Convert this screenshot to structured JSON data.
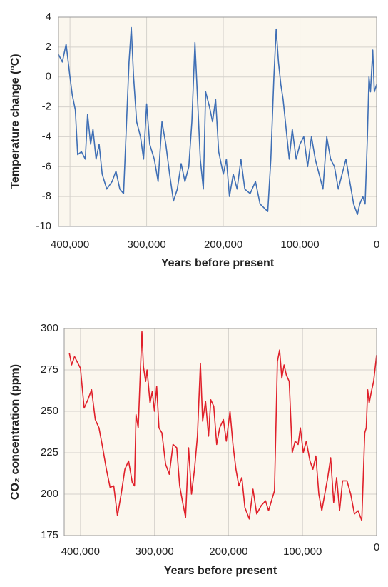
{
  "chart_data": [
    {
      "type": "line",
      "xlabel": "Years before present",
      "ylabel": "Temperature change (°C)",
      "color": "#3f6fb5",
      "grid": true,
      "xlim": [
        415000,
        0
      ],
      "xticks": [
        {
          "value": 400000,
          "label": "400,000"
        },
        {
          "value": 300000,
          "label": "300,000"
        },
        {
          "value": 200000,
          "label": "200,000"
        },
        {
          "value": 100000,
          "label": "100,000"
        },
        0
      ],
      "ylim": [
        -10,
        4
      ],
      "yticks": [
        -10,
        -8,
        -6,
        -4,
        -2,
        0,
        2,
        4
      ],
      "x": [
        415000,
        410000,
        405000,
        400000,
        397000,
        393000,
        390000,
        385000,
        380000,
        377000,
        373000,
        370000,
        366000,
        362000,
        358000,
        352000,
        345000,
        340000,
        335000,
        330000,
        327000,
        323000,
        320000,
        317000,
        313000,
        308000,
        304000,
        300000,
        296000,
        290000,
        285000,
        280000,
        275000,
        270000,
        265000,
        260000,
        255000,
        250000,
        245000,
        241000,
        237000,
        234000,
        230000,
        226000,
        223000,
        218000,
        214000,
        210000,
        206000,
        200000,
        196000,
        192000,
        187000,
        182000,
        177000,
        172000,
        165000,
        158000,
        152000,
        146000,
        142000,
        138000,
        134000,
        131000,
        128000,
        125000,
        122000,
        118000,
        114000,
        110000,
        105000,
        100000,
        95000,
        90000,
        85000,
        80000,
        75000,
        70000,
        65000,
        60000,
        55000,
        50000,
        45000,
        40000,
        35000,
        30000,
        25000,
        22000,
        18000,
        15000,
        12000,
        10000,
        8000,
        5000,
        3000,
        0
      ],
      "values": [
        1.5,
        1.0,
        2.2,
        0,
        -1.2,
        -2.2,
        -5.2,
        -5.0,
        -5.5,
        -2.5,
        -4.5,
        -3.5,
        -5.5,
        -4.5,
        -6.5,
        -7.5,
        -7.0,
        -6.3,
        -7.5,
        -7.8,
        -4.0,
        1.0,
        3.3,
        0,
        -3.0,
        -4.0,
        -5.5,
        -1.8,
        -4.5,
        -5.5,
        -7.0,
        -3.0,
        -4.5,
        -6.5,
        -8.3,
        -7.5,
        -5.8,
        -7.0,
        -6.0,
        -3.0,
        2.3,
        -1.0,
        -5.5,
        -7.5,
        -1.0,
        -2.0,
        -3.0,
        -1.5,
        -5.0,
        -6.5,
        -5.5,
        -8.0,
        -6.5,
        -7.5,
        -5.5,
        -7.5,
        -7.8,
        -7.0,
        -8.5,
        -8.8,
        -9.0,
        -5.5,
        0,
        3.2,
        1.0,
        -0.5,
        -1.5,
        -3.5,
        -5.5,
        -3.5,
        -5.5,
        -4.5,
        -4.0,
        -6.0,
        -4.0,
        -5.5,
        -6.5,
        -7.5,
        -4.0,
        -5.5,
        -6.0,
        -7.5,
        -6.5,
        -5.5,
        -7.0,
        -8.5,
        -9.2,
        -8.5,
        -8.0,
        -8.5,
        -4.0,
        0,
        -1.0,
        1.8,
        -1.0,
        -0.5
      ]
    },
    {
      "type": "line",
      "xlabel": "Years before present",
      "ylabel": "CO₂ concentration (ppm)",
      "color": "#e0202a",
      "grid": true,
      "xlim": [
        422000,
        0
      ],
      "xticks": [
        {
          "value": 400000,
          "label": "400,000"
        },
        {
          "value": 300000,
          "label": "300,000"
        },
        {
          "value": 200000,
          "label": "200,000"
        },
        {
          "value": 100000,
          "label": "100,000"
        },
        0
      ],
      "ylim": [
        175,
        300
      ],
      "yticks": [
        175,
        200,
        225,
        250,
        275,
        300
      ],
      "x": [
        415000,
        412000,
        408000,
        400000,
        395000,
        390000,
        385000,
        380000,
        375000,
        370000,
        365000,
        360000,
        355000,
        350000,
        345000,
        340000,
        335000,
        330000,
        327000,
        325000,
        322000,
        319000,
        317000,
        315000,
        312000,
        310000,
        306000,
        303000,
        300000,
        297000,
        294000,
        290000,
        285000,
        280000,
        275000,
        270000,
        266000,
        262000,
        258000,
        254000,
        250000,
        246000,
        242000,
        238000,
        235000,
        231000,
        227000,
        224000,
        220000,
        216000,
        212000,
        207000,
        203000,
        198000,
        194000,
        190000,
        186000,
        182000,
        178000,
        172000,
        167000,
        162000,
        156000,
        150000,
        146000,
        142000,
        138000,
        134000,
        131000,
        128000,
        125000,
        122000,
        118000,
        114000,
        110000,
        106000,
        103000,
        99000,
        95000,
        90000,
        86000,
        82000,
        78000,
        74000,
        70000,
        66000,
        62000,
        58000,
        54000,
        50000,
        46000,
        40000,
        35000,
        30000,
        25000,
        20000,
        16000,
        14000,
        12000,
        10000,
        7000,
        4000,
        0
      ],
      "values": [
        285,
        278,
        283,
        276,
        252,
        257,
        263,
        245,
        240,
        228,
        215,
        204,
        205,
        187,
        200,
        215,
        220,
        207,
        205,
        248,
        240,
        275,
        298,
        277,
        268,
        275,
        255,
        262,
        250,
        265,
        240,
        237,
        218,
        212,
        230,
        228,
        205,
        195,
        186,
        228,
        200,
        215,
        235,
        279,
        244,
        256,
        235,
        257,
        253,
        230,
        240,
        245,
        232,
        250,
        230,
        215,
        205,
        210,
        192,
        185,
        203,
        188,
        193,
        196,
        190,
        196,
        202,
        280,
        287,
        270,
        278,
        272,
        268,
        225,
        232,
        230,
        240,
        225,
        232,
        220,
        215,
        223,
        200,
        190,
        200,
        210,
        222,
        195,
        210,
        190,
        208,
        208,
        200,
        188,
        190,
        184,
        237,
        240,
        263,
        255,
        262,
        268,
        284
      ]
    }
  ]
}
